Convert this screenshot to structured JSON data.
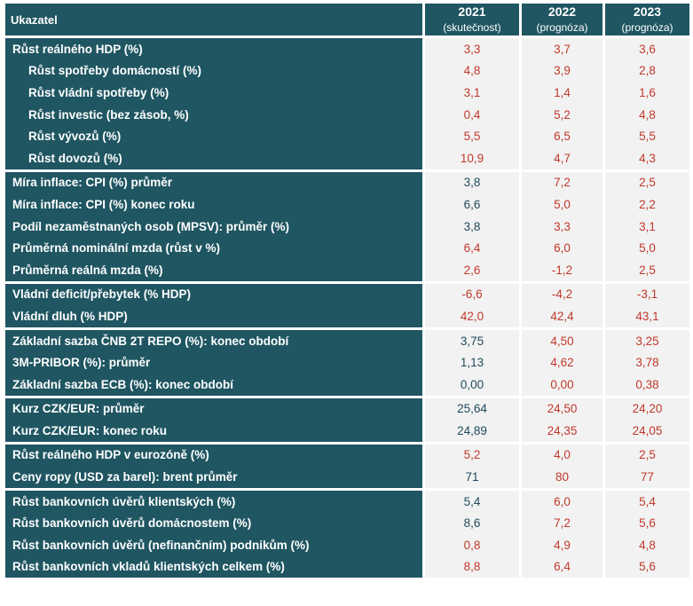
{
  "header": {
    "indicator_label": "Ukazatel",
    "columns": [
      {
        "year": "2021",
        "sub": "(skutečnost)"
      },
      {
        "year": "2022",
        "sub": "(prognóza)"
      },
      {
        "year": "2023",
        "sub": "(prognóza)"
      }
    ]
  },
  "colors": {
    "header_bg": "#1f5662",
    "forecast_text": "#c0392b",
    "actual_text": "#1f4a5c",
    "cell_bg": "#f2f2f2"
  },
  "rows": [
    {
      "label": "Růst reálného HDP (%)",
      "v": [
        "3,3",
        "3,7",
        "3,6"
      ]
    },
    {
      "label": "Růst spotřeby domácností (%)",
      "v": [
        "4,8",
        "3,9",
        "2,8"
      ]
    },
    {
      "label": "Růst vládní spotřeby (%)",
      "v": [
        "3,1",
        "1,4",
        "1,6"
      ]
    },
    {
      "label": "Růst investic (bez zásob, %)",
      "v": [
        "0,4",
        "5,2",
        "4,8"
      ]
    },
    {
      "label": "Růst vývozů (%)",
      "v": [
        "5,5",
        "6,5",
        "5,5"
      ]
    },
    {
      "label": "Růst dovozů (%)",
      "v": [
        "10,9",
        "4,7",
        "4,3"
      ]
    },
    {
      "label": "Míra inflace: CPI (%) průměr",
      "v": [
        "3,8",
        "7,2",
        "2,5"
      ]
    },
    {
      "label": "Míra inflace: CPI (%) konec roku",
      "v": [
        "6,6",
        "5,0",
        "2,2"
      ]
    },
    {
      "label": "Podíl nezaměstnaných osob (MPSV): průměr (%)",
      "v": [
        "3,8",
        "3,3",
        "3,1"
      ]
    },
    {
      "label": "Průměrná nominální mzda (růst v %)",
      "v": [
        "6,4",
        "6,0",
        "5,0"
      ]
    },
    {
      "label": "Průměrná reálná mzda (%)",
      "v": [
        "2,6",
        "-1,2",
        "2,5"
      ]
    },
    {
      "label": "Vládní deficit/přebytek (% HDP)",
      "v": [
        "-6,6",
        "-4,2",
        "-3,1"
      ]
    },
    {
      "label": "Vládní dluh (% HDP)",
      "v": [
        "42,0",
        "42,4",
        "43,1"
      ]
    },
    {
      "label": "Základní sazba ČNB 2T REPO (%): konec období",
      "v": [
        "3,75",
        "4,50",
        "3,25"
      ]
    },
    {
      "label": "3M-PRIBOR (%): průměr",
      "v": [
        "1,13",
        "4,62",
        "3,78"
      ]
    },
    {
      "label": "Základní sazba ECB (%): konec období",
      "v": [
        "0,00",
        "0,00",
        "0,38"
      ]
    },
    {
      "label": "Kurz CZK/EUR: průměr",
      "v": [
        "25,64",
        "24,50",
        "24,20"
      ]
    },
    {
      "label": "Kurz CZK/EUR: konec roku",
      "v": [
        "24,89",
        "24,35",
        "24,05"
      ]
    },
    {
      "label": "Růst reálného HDP v eurozóně (%)",
      "v": [
        "5,2",
        "4,0",
        "2,5"
      ]
    },
    {
      "label": "Ceny ropy (USD za barel): brent průměr",
      "v": [
        "71",
        "80",
        "77"
      ]
    },
    {
      "label": "Růst bankovních úvěrů klientských (%)",
      "v": [
        "5,4",
        "6,0",
        "5,4"
      ]
    },
    {
      "label": "Růst bankovních úvěrů domácnostem (%)",
      "v": [
        "8,6",
        "7,2",
        "5,6"
      ]
    },
    {
      "label": "Růst bankovních úvěrů (nefinančním) podnikům (%)",
      "v": [
        "0,8",
        "4,9",
        "4,8"
      ]
    },
    {
      "label": "Růst bankovních vkladů klientských celkem (%)",
      "v": [
        "8,8",
        "6,4",
        "5,6"
      ]
    }
  ]
}
